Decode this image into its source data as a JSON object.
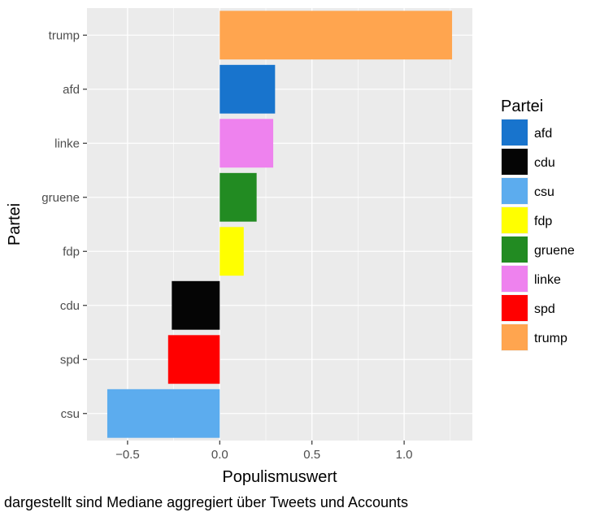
{
  "chart_data": {
    "type": "bar",
    "orientation": "horizontal",
    "xlabel": "Populismuswert",
    "ylabel": "Partei",
    "caption": "dargestellt sind Mediane aggregiert über Tweets und Accounts",
    "xlim": [
      -0.72,
      1.37
    ],
    "x_ticks": [
      -0.5,
      0.0,
      0.5,
      1.0
    ],
    "x_tick_labels": [
      "−0.5",
      "0.0",
      "0.5",
      "1.0"
    ],
    "grid": true,
    "categories": [
      "trump",
      "afd",
      "linke",
      "gruene",
      "fdp",
      "cdu",
      "spd",
      "csu"
    ],
    "values": [
      1.26,
      0.3,
      0.29,
      0.2,
      0.13,
      -0.26,
      -0.28,
      -0.61
    ],
    "colors": {
      "afd": "#1874CD",
      "cdu": "#050505",
      "csu": "#5CACEE",
      "fdp": "#FFFF00",
      "gruene": "#228B22",
      "linke": "#EE82EE",
      "spd": "#FF0000",
      "trump": "#FFA54F"
    },
    "legend": {
      "title": "Partei",
      "placement": "right",
      "entries": [
        "afd",
        "cdu",
        "csu",
        "fdp",
        "gruene",
        "linke",
        "spd",
        "trump"
      ]
    }
  }
}
